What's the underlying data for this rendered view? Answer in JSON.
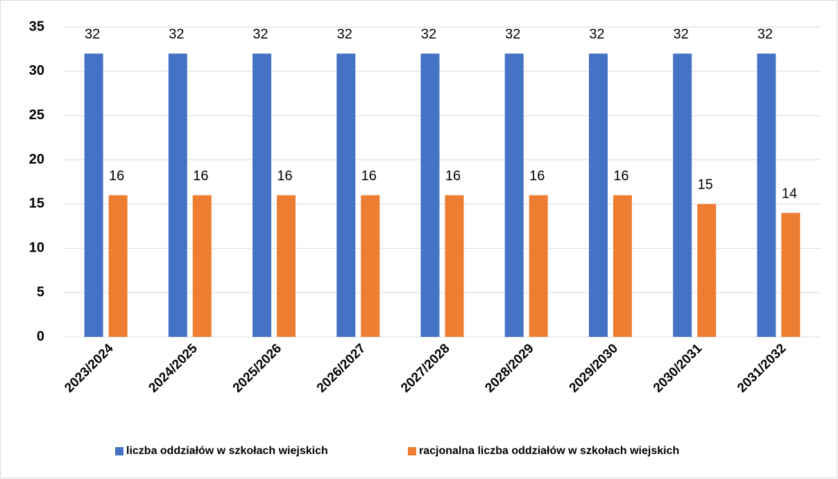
{
  "chart_data": {
    "type": "bar",
    "categories": [
      "2023/2024",
      "2024/2025",
      "2025/2026",
      "2026/2027",
      "2027/2028",
      "2028/2029",
      "2029/2030",
      "2030/2031",
      "2031/2032"
    ],
    "series": [
      {
        "name": "liczba oddziałów w szkołach wiejskich",
        "color": "#4472c4",
        "values": [
          32,
          32,
          32,
          32,
          32,
          32,
          32,
          32,
          32
        ]
      },
      {
        "name": "racjonalna liczba oddziałów w szkołach wiejskich",
        "color": "#ed7d31",
        "values": [
          16,
          16,
          16,
          16,
          16,
          16,
          16,
          15,
          14
        ]
      }
    ],
    "ylim": [
      0,
      35
    ],
    "yticks": [
      0,
      5,
      10,
      15,
      20,
      25,
      30,
      35
    ],
    "grid": true,
    "legend": "bottom"
  }
}
